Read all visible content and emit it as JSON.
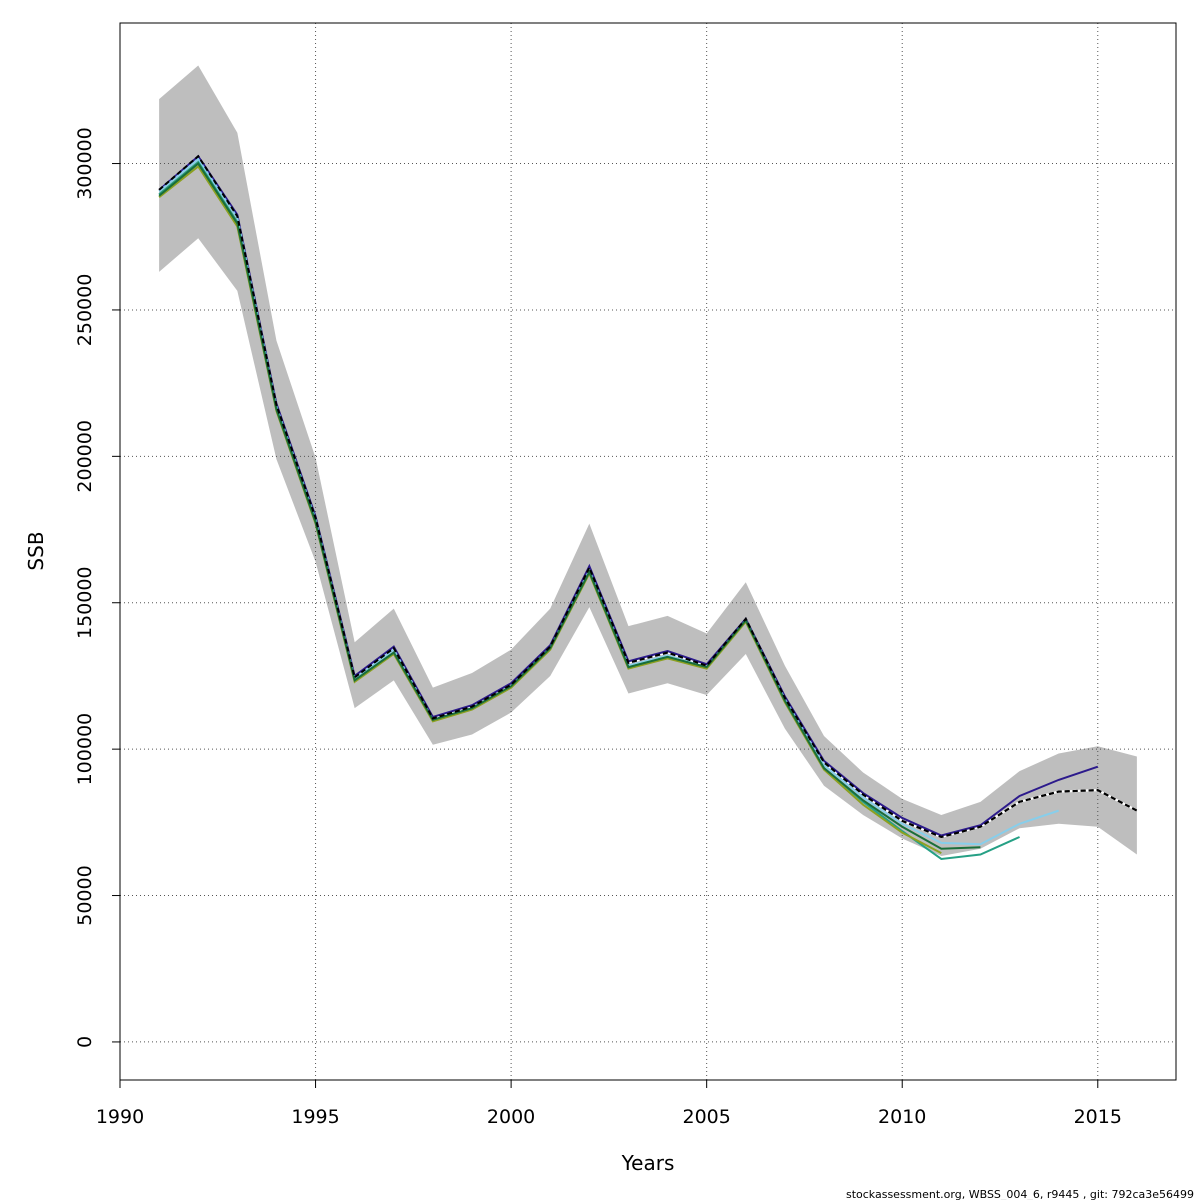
{
  "chart_data": {
    "type": "line",
    "title": "",
    "xlabel": "Years",
    "ylabel": "SSB",
    "xlim": [
      1990,
      2017
    ],
    "ylim": [
      -13000,
      348000
    ],
    "xticks": [
      1990,
      1995,
      2000,
      2005,
      2010,
      2015
    ],
    "yticks": [
      0,
      50000,
      100000,
      150000,
      200000,
      250000,
      300000
    ],
    "grid": true,
    "legend": "none",
    "confidence_band": {
      "x": [
        1991,
        1992,
        1993,
        1994,
        1995,
        1996,
        1997,
        1998,
        1999,
        2000,
        2001,
        2002,
        2003,
        2004,
        2005,
        2006,
        2007,
        2008,
        2009,
        2010,
        2011,
        2012,
        2013,
        2014,
        2015,
        2016
      ],
      "lower": [
        263000,
        274500,
        256500,
        199000,
        164000,
        114000,
        123500,
        101500,
        105000,
        112500,
        125000,
        148500,
        119000,
        122500,
        118500,
        132500,
        107000,
        87500,
        77500,
        69500,
        63500,
        66000,
        73000,
        74500,
        73500,
        64000
      ],
      "upper": [
        322000,
        333500,
        310500,
        239500,
        199500,
        136500,
        148000,
        121000,
        126000,
        134000,
        148000,
        177000,
        142000,
        145500,
        139500,
        157000,
        128500,
        104500,
        92000,
        83000,
        77500,
        82000,
        92500,
        98500,
        101000,
        97500
      ],
      "color": "#bebebe"
    },
    "series": [
      {
        "color": "#000000",
        "dashed": true,
        "x": [
          1991,
          1992,
          1993,
          1994,
          1995,
          1996,
          1997,
          1998,
          1999,
          2000,
          2001,
          2002,
          2003,
          2004,
          2005,
          2006,
          2007,
          2008,
          2009,
          2010,
          2011,
          2012,
          2013,
          2014,
          2015,
          2016
        ],
        "values": [
          291000,
          302500,
          282000,
          217500,
          179000,
          124500,
          134500,
          110500,
          114500,
          122000,
          135000,
          162000,
          129500,
          133000,
          128500,
          144500,
          117500,
          95500,
          84500,
          75500,
          70000,
          73500,
          82000,
          85500,
          86000,
          79000
        ]
      },
      {
        "color": "#2c1a8c",
        "dashed": false,
        "x": [
          1991,
          1992,
          1993,
          1994,
          1995,
          1996,
          1997,
          1998,
          1999,
          2000,
          2001,
          2002,
          2003,
          2004,
          2005,
          2006,
          2007,
          2008,
          2009,
          2010,
          2011,
          2012,
          2013,
          2014,
          2015
        ],
        "values": [
          291000,
          302500,
          282500,
          218000,
          179500,
          125000,
          135000,
          111000,
          115000,
          122500,
          135500,
          162500,
          130000,
          133500,
          129000,
          144500,
          118000,
          96000,
          85000,
          76500,
          70500,
          74000,
          84000,
          89500,
          94000
        ]
      },
      {
        "color": "#87ceeb",
        "dashed": false,
        "x": [
          1991,
          1992,
          1993,
          1994,
          1995,
          1996,
          1997,
          1998,
          1999,
          2000,
          2001,
          2002,
          2003,
          2004,
          2005,
          2006,
          2007,
          2008,
          2009,
          2010,
          2011,
          2012,
          2013,
          2014
        ],
        "values": [
          290500,
          301500,
          281500,
          217000,
          178500,
          124000,
          134000,
          110000,
          114000,
          121500,
          134500,
          161000,
          128500,
          132000,
          128000,
          144000,
          117000,
          94500,
          83500,
          74500,
          68000,
          67500,
          74500,
          79000
        ]
      },
      {
        "color": "#26a085",
        "dashed": false,
        "x": [
          1991,
          1992,
          1993,
          1994,
          1995,
          1996,
          1997,
          1998,
          1999,
          2000,
          2001,
          2002,
          2003,
          2004,
          2005,
          2006,
          2007,
          2008,
          2009,
          2010,
          2011,
          2012,
          2013
        ],
        "values": [
          289500,
          300500,
          280000,
          216500,
          178000,
          123500,
          133000,
          110000,
          114000,
          121500,
          134500,
          160500,
          128000,
          131500,
          128000,
          144000,
          116500,
          93500,
          82000,
          72000,
          62500,
          64000,
          70000
        ]
      },
      {
        "color": "#8ca020",
        "dashed": false,
        "x": [
          1991,
          1992,
          1993,
          1994,
          1995,
          1996,
          1997,
          1998,
          1999,
          2000,
          2001,
          2002,
          2003,
          2004,
          2005,
          2006,
          2007,
          2008,
          2009,
          2010,
          2011
        ],
        "values": [
          288500,
          299000,
          278500,
          215500,
          177000,
          123000,
          132500,
          109500,
          113500,
          121000,
          134000,
          160000,
          127500,
          131000,
          127500,
          143500,
          116000,
          93000,
          81000,
          71500,
          64500
        ]
      },
      {
        "color": "#1a6e3a",
        "dashed": false,
        "x": [
          1991,
          1992,
          1993,
          1994,
          1995,
          1996,
          1997,
          1998,
          1999,
          2000,
          2001,
          2002,
          2003,
          2004,
          2005,
          2006,
          2007,
          2008,
          2009,
          2010,
          2011,
          2012
        ],
        "values": [
          289000,
          300000,
          279500,
          216000,
          177500,
          123500,
          133000,
          110000,
          114000,
          121500,
          134500,
          160500,
          128000,
          131500,
          128000,
          144000,
          116500,
          93500,
          82500,
          73500,
          66000,
          66500
        ]
      }
    ]
  },
  "footer": {
    "source": "stockassessment.org, WBSS_004_6, r9445 , git: 792ca3e56499"
  }
}
